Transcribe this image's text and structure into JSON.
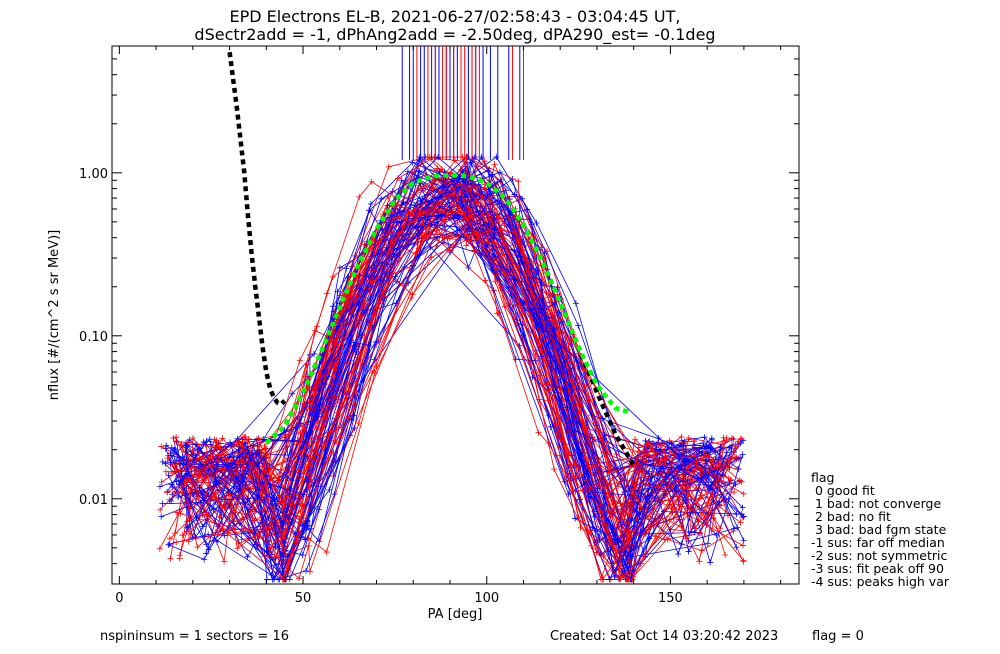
{
  "title_line1": "EPD Electrons EL-B, 2021-06-27/02:58:43 - 03:04:45 UT,",
  "title_line2": "dSectr2add = -1, dPhAng2add = -2.50deg, dPA290_est=  -0.1deg",
  "footer": {
    "left": "nspininsum =  1  sectors = 16",
    "created": "Created: Sat Oct 14 03:20:42 2023",
    "flag": "flag = 0"
  },
  "legend": {
    "title": "flag",
    "items": [
      " 0 good fit",
      " 1 bad: not converge",
      " 2 bad: no fit",
      " 3 bad: bad fgm state",
      "-1 sus: far off median",
      "-2 sus: not symmetric",
      "-3 sus: fit peak off 90",
      "-4 sus: peaks high var"
    ]
  },
  "colors": {
    "red": "#ff0000",
    "blue": "#0000ff",
    "green": "#00ff00",
    "black": "#000000"
  },
  "chart_data": {
    "type": "line",
    "xlabel": "PA [deg]",
    "ylabel": "nflux [#/(cm^2 s sr MeV)]",
    "xlim": [
      -2,
      185
    ],
    "ylim": [
      0.003,
      6.0
    ],
    "yscale": "log",
    "x_ticks": [
      0,
      50,
      100,
      150
    ],
    "x_tick_labels": [
      "0",
      "50",
      "100",
      "150"
    ],
    "y_ticks": [
      0.01,
      0.1,
      1.0
    ],
    "y_tick_labels": [
      "0.01",
      "0.10",
      "1.00"
    ],
    "peak_markers": {
      "red_x": [
        81,
        84,
        86,
        88,
        89,
        91,
        93,
        94,
        96,
        97,
        98,
        107,
        110
      ],
      "blue_x": [
        77,
        79,
        80,
        82,
        83,
        85,
        86,
        87,
        89,
        90,
        91,
        92,
        93,
        95,
        96,
        97,
        99,
        101,
        103,
        106,
        109
      ]
    },
    "series": [
      {
        "color": "black",
        "style": "dashed-thick",
        "x": [
          30,
          32,
          34,
          35,
          36,
          37,
          38,
          39,
          40,
          41,
          42,
          43,
          44,
          45
        ],
        "y": [
          5.5,
          2.5,
          1.0,
          0.55,
          0.32,
          0.2,
          0.13,
          0.085,
          0.06,
          0.048,
          0.042,
          0.039,
          0.038,
          0.04
        ]
      },
      {
        "color": "black",
        "style": "dashed-thick",
        "x": [
          40,
          45,
          50,
          55,
          60,
          65,
          70,
          75,
          80,
          85,
          90,
          95,
          100,
          105,
          110,
          115,
          120,
          125,
          130,
          135,
          140
        ],
        "y": [
          0.022,
          0.028,
          0.045,
          0.08,
          0.15,
          0.27,
          0.45,
          0.68,
          0.87,
          0.95,
          0.97,
          0.95,
          0.87,
          0.7,
          0.48,
          0.29,
          0.16,
          0.085,
          0.045,
          0.025,
          0.016
        ]
      },
      {
        "color": "green",
        "style": "dashed-thick",
        "x": [
          40,
          45,
          50,
          55,
          60,
          65,
          70,
          75,
          80,
          85,
          90,
          95,
          100,
          105,
          110,
          115,
          120,
          125,
          130,
          135,
          139
        ],
        "y": [
          0.022,
          0.028,
          0.045,
          0.08,
          0.15,
          0.27,
          0.45,
          0.68,
          0.87,
          0.95,
          0.97,
          0.95,
          0.87,
          0.7,
          0.48,
          0.29,
          0.16,
          0.085,
          0.05,
          0.036,
          0.034
        ]
      }
    ]
  }
}
